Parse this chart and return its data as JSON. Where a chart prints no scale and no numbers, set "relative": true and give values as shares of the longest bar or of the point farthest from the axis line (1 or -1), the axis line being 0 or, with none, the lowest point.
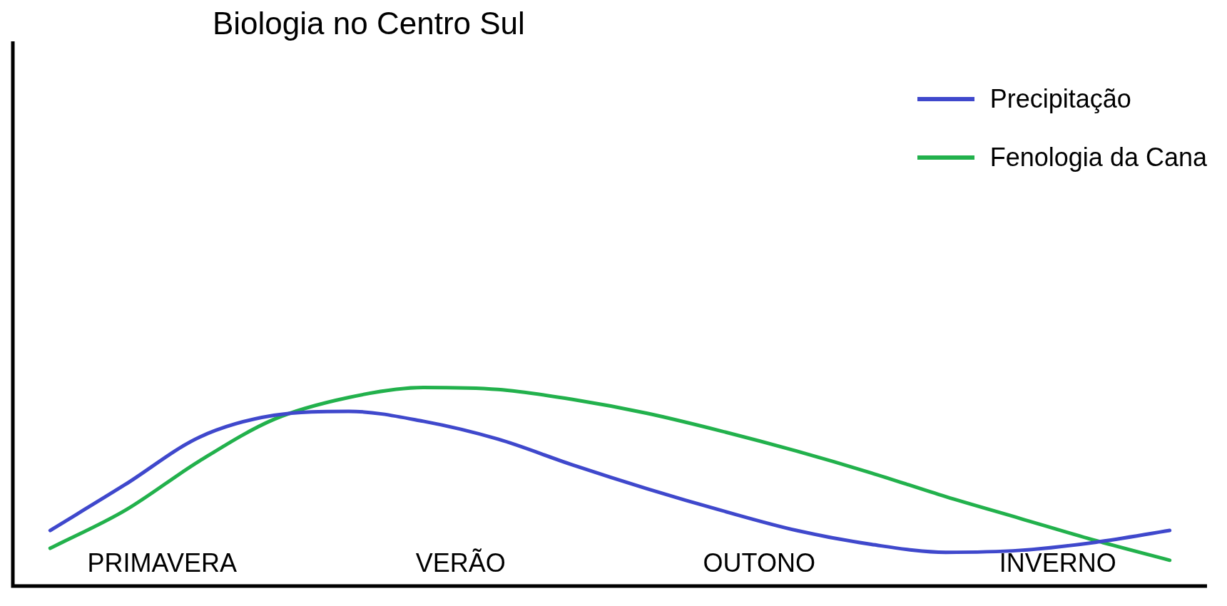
{
  "chart_data": {
    "type": "line",
    "title": "Biologia no Centro Sul",
    "relative": true,
    "legend": "top right",
    "categories": [
      null,
      null,
      null,
      null,
      null,
      null,
      null,
      null,
      null,
      null,
      null,
      null,
      null,
      null,
      null,
      null
    ],
    "annotations": [
      "PRIMAVERA",
      "VERÃO",
      "OUTONO",
      "INVERNO"
    ],
    "series": [
      {
        "name": "Precipitação",
        "color": "#3f48cc",
        "values": [
          0.28,
          0.51,
          0.75,
          0.86,
          0.88,
          0.83,
          0.74,
          0.61,
          0.49,
          0.38,
          0.28,
          0.21,
          0.17,
          0.18,
          0.22,
          0.28
        ]
      },
      {
        "name": "Fenologia da Cana",
        "color": "#22b14c",
        "values": [
          0.19,
          0.38,
          0.63,
          0.84,
          0.95,
          1,
          0.99,
          0.94,
          0.87,
          0.78,
          0.68,
          0.57,
          0.45,
          0.34,
          0.23,
          0.13
        ]
      }
    ]
  }
}
